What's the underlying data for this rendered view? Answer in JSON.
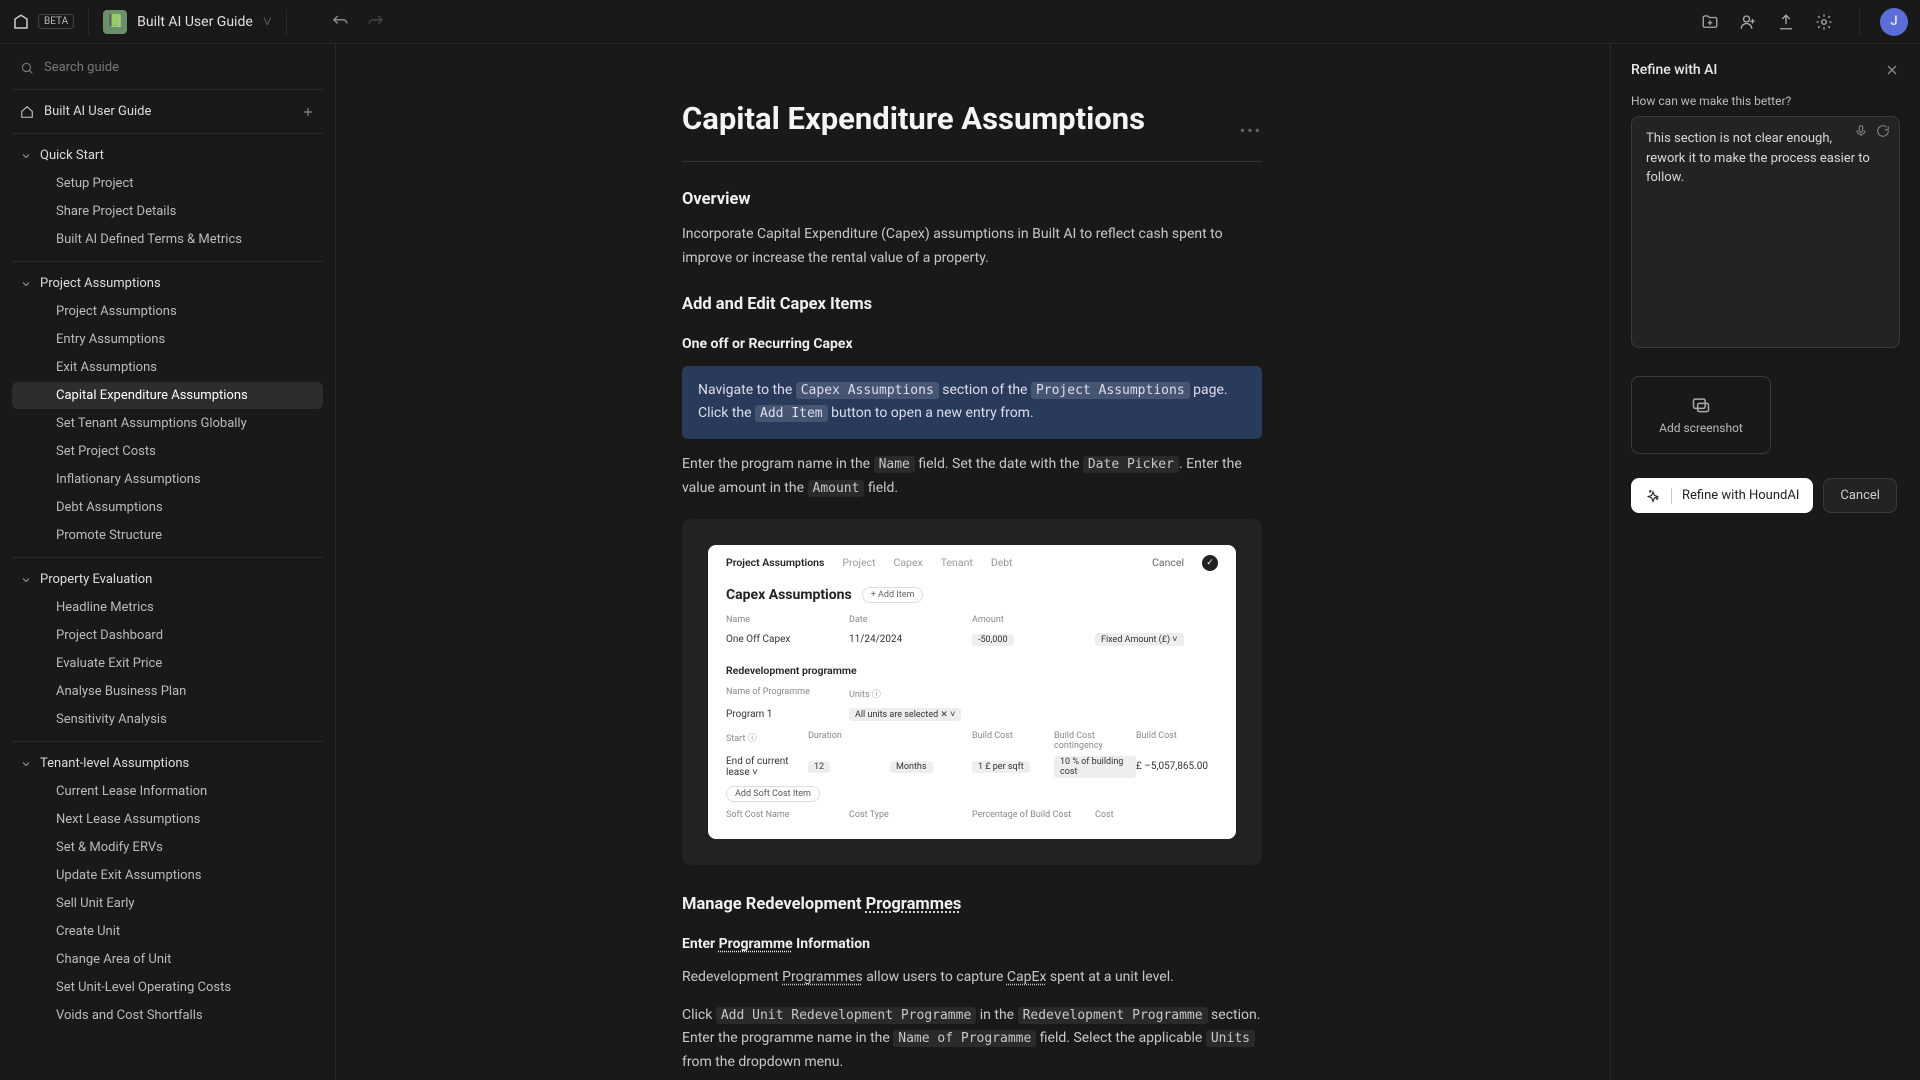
{
  "app": {
    "beta_label": "BETA",
    "doc_title": "Built AI User Guide",
    "doc_icon": "📗"
  },
  "topbar_right": {
    "avatar_initial": "J",
    "avatar_bg": "#5b6dd6"
  },
  "sidebar": {
    "search_placeholder": "Search guide",
    "home_label": "Built AI User Guide",
    "sections": [
      {
        "title": "Quick Start",
        "items": [
          "Setup Project",
          "Share Project Details",
          "Built AI Defined Terms & Metrics"
        ]
      },
      {
        "title": "Project Assumptions",
        "items": [
          "Project Assumptions",
          "Entry Assumptions",
          "Exit Assumptions",
          "Capital Expenditure Assumptions",
          "Set Tenant Assumptions Globally",
          "Set Project Costs",
          "Inflationary Assumptions",
          "Debt Assumptions",
          "Promote Structure"
        ],
        "active_index": 3
      },
      {
        "title": "Property Evaluation",
        "items": [
          "Headline Metrics",
          "Project Dashboard",
          "Evaluate Exit Price",
          "Analyse Business Plan",
          "Sensitivity Analysis"
        ]
      },
      {
        "title": "Tenant-level Assumptions",
        "items": [
          "Current Lease Information",
          "Next Lease Assumptions",
          "Set & Modify ERVs",
          "Update Exit Assumptions",
          "Sell Unit Early",
          "Create Unit",
          "Change Area of Unit",
          "Set Unit-Level Operating Costs",
          "Voids and Cost Shortfalls"
        ]
      }
    ]
  },
  "content": {
    "h1": "Capital Expenditure Assumptions",
    "overview_h": "Overview",
    "overview_p": "Incorporate Capital Expenditure (Capex) assumptions in Built AI to reflect cash spent to improve or increase the rental value of a property.",
    "addedit_h": "Add and Edit Capex Items",
    "oneoff_h": "One off or Recurring Capex",
    "callout_pre": "Navigate to the ",
    "callout_code1": "Capex Assumptions",
    "callout_mid1": " section of the ",
    "callout_code2": "Project Assumptions",
    "callout_mid2": " page. Click the ",
    "callout_code3": "Add Item",
    "callout_post": " button to open a new entry from.",
    "p2_a": "Enter the program name in the ",
    "p2_code1": "Name",
    "p2_b": " field.  Set the date with the ",
    "p2_code2": "Date Picker",
    "p2_c": ". Enter the value amount in the ",
    "p2_code3": "Amount",
    "p2_d": " field.",
    "manage_h": "Manage Redevelopment Programmes",
    "enter_h": "Enter Programme Information",
    "p3": "Redevelopment Programmes allow users to capture CapEx spent at a unit level.",
    "p4_a": "Click ",
    "p4_code1": "Add Unit Redevelopment Programme",
    "p4_b": " in the ",
    "p4_code2": "Redevelopment Programme",
    "p4_c": " section. Enter the programme name in the ",
    "p4_code3": "Name of Programme",
    "p4_d": " field. Select the applicable ",
    "p4_code4": "Units",
    "p4_e": " from the dropdown menu."
  },
  "shot": {
    "tabs": [
      "Project Assumptions",
      "Project",
      "Capex",
      "Tenant",
      "Debt"
    ],
    "cancel": "Cancel",
    "title": "Capex Assumptions",
    "add_item": "+ Add Item",
    "hdr1": [
      "Name",
      "Date",
      "Amount",
      ""
    ],
    "row1": [
      "One Off Capex",
      "11/24/2024",
      "-50,000",
      "Fixed Amount (£)  ˅"
    ],
    "sub1": "Redevelopment programme",
    "hdr2": [
      "Name of Programme",
      "Units ⓘ",
      "",
      ""
    ],
    "row2": [
      "Program 1",
      "All units are selected ✕ ˅",
      "",
      ""
    ],
    "hdr3": [
      "Start ⓘ",
      "Duration",
      "",
      "Build Cost",
      "Build Cost contingency",
      "Build Cost"
    ],
    "row3": [
      "End of current lease    ˅",
      "12",
      "Months",
      "1       £ per sqft",
      "10        % of building cost",
      "£ –5,057,865.00"
    ],
    "btn_soft": "Add Soft Cost Item",
    "hdr4": [
      "Soft Cost Name",
      "Cost Type",
      "Percentage of Build Cost",
      "Cost"
    ]
  },
  "right": {
    "title": "Refine with AI",
    "prompt_label": "How can we make this better?",
    "input_value": "This section is not clear enough, rework it to make the process easier to follow.",
    "screenshot_label": "Add screenshot",
    "refine_btn": "Refine with HoundAI",
    "cancel_btn": "Cancel"
  },
  "colors": {
    "bg": "#191919",
    "panel_border": "#2a2a2a",
    "callout_bg": "#2a3a5a",
    "input_bg": "#232323"
  }
}
